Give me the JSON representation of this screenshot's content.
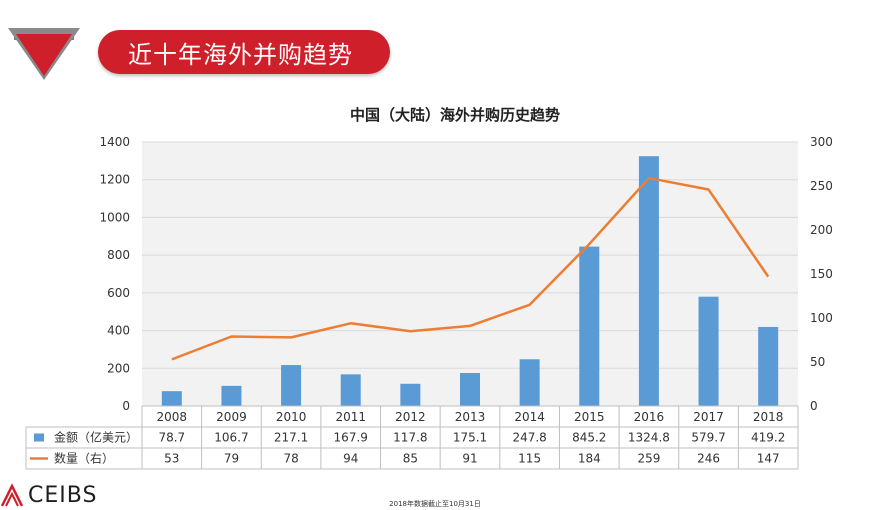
{
  "header": {
    "title": "近十年海外并购趋势",
    "accent_color": "#cf1f2a",
    "icon": "red-down-triangle-icon"
  },
  "chart_data": {
    "type": "bar-line-combo",
    "title": "中国（大陆）海外并购历史趋势",
    "categories": [
      "2008",
      "2009",
      "2010",
      "2011",
      "2012",
      "2013",
      "2014",
      "2015",
      "2016",
      "2017",
      "2018"
    ],
    "series": [
      {
        "name": "金额（亿美元）",
        "type": "bar",
        "axis": "left",
        "color": "#5b9bd5",
        "values": [
          78.7,
          106.7,
          217.1,
          167.9,
          117.8,
          175.1,
          247.8,
          845.2,
          1324.8,
          579.7,
          419.2
        ],
        "labels": [
          "78.7",
          "106.7",
          "217.1",
          "167.9",
          "117.8",
          "175.1",
          "247.8",
          "845.2",
          "1324.8",
          "579.7",
          "419.2"
        ]
      },
      {
        "name": "数量（右）",
        "type": "line",
        "axis": "right",
        "color": "#ed7d31",
        "values": [
          53,
          79,
          78,
          94,
          85,
          91,
          115,
          184,
          259,
          246,
          147
        ],
        "labels": [
          "53",
          "79",
          "78",
          "94",
          "85",
          "91",
          "115",
          "184",
          "259",
          "246",
          "147"
        ]
      }
    ],
    "y_left": {
      "min": 0,
      "max": 1400,
      "ticks": [
        "0",
        "200",
        "400",
        "600",
        "800",
        "1000",
        "1200",
        "1400"
      ]
    },
    "y_right": {
      "min": 0,
      "max": 300,
      "ticks": [
        "0",
        "50",
        "100",
        "150",
        "200",
        "250",
        "300"
      ]
    },
    "grid": true,
    "legend": "data-table"
  },
  "footer": {
    "logo_text": "CEIBS",
    "note": "2018年数据截止至10月31日"
  }
}
